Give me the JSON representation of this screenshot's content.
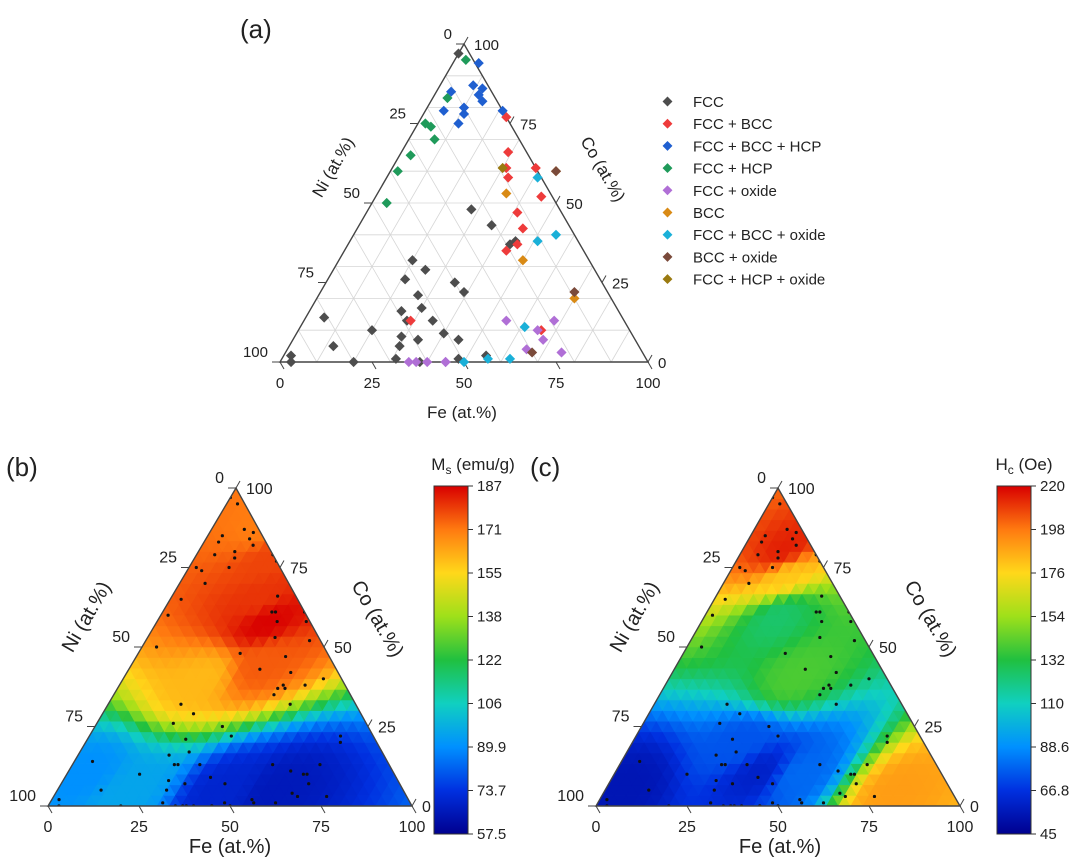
{
  "panels": {
    "a": {
      "label": "(a)"
    },
    "b": {
      "label": "(b)"
    },
    "c": {
      "label": "(c)"
    }
  },
  "colors": {
    "FCC": "#4d4d4d",
    "FCC + BCC": "#ee3b3b",
    "FCC + BCC + HCP": "#1f5fd0",
    "FCC + HCP": "#1f9a5a",
    "FCC + oxide": "#b06fd6",
    "BCC": "#d98a15",
    "FCC + BCC + oxide": "#1ab0d8",
    "BCC + oxide": "#7a4a3a",
    "FCC + HCP + oxide": "#9a7a10"
  },
  "chart_data": [
    {
      "type": "scatter",
      "subtype": "ternary",
      "panel": "(a)",
      "axes": {
        "bottom": "Fe (at.%)",
        "left": "Ni (at.%)",
        "right": "Co (at.%)",
        "ticks_bottom": [
          "0",
          "25",
          "50",
          "75",
          "100"
        ],
        "ticks_left": [
          "0",
          "25",
          "50",
          "75",
          "100"
        ],
        "ticks_right": [
          "0",
          "25",
          "50",
          "75",
          "100"
        ]
      },
      "grid": true,
      "legend_position": "right",
      "series": [
        {
          "name": "FCC",
          "points": [
            {
              "fe": 0,
              "co": 97
            },
            {
              "fe": 5,
              "co": 14
            },
            {
              "fe": 2,
              "co": 2
            },
            {
              "fe": 3,
              "co": 0
            },
            {
              "fe": 12,
              "co": 5
            },
            {
              "fe": 20,
              "co": 10
            },
            {
              "fe": 25,
              "co": 16
            },
            {
              "fe": 30,
              "co": 17
            },
            {
              "fe": 28,
              "co": 13
            },
            {
              "fe": 35,
              "co": 13
            },
            {
              "fe": 40,
              "co": 9
            },
            {
              "fe": 45,
              "co": 7
            },
            {
              "fe": 30,
              "co": 5
            },
            {
              "fe": 31,
              "co": 1
            },
            {
              "fe": 38,
              "co": 0
            },
            {
              "fe": 48,
              "co": 1
            },
            {
              "fe": 55,
              "co": 2
            },
            {
              "fe": 39,
              "co": 22
            },
            {
              "fe": 35,
              "co": 25
            },
            {
              "fe": 25,
              "co": 29
            },
            {
              "fe": 20,
              "co": 32
            },
            {
              "fe": 29,
              "co": 8
            },
            {
              "fe": 34,
              "co": 7
            },
            {
              "fe": 20,
              "co": 0
            },
            {
              "fe": 21,
              "co": 26
            },
            {
              "fe": 27,
              "co": 21
            },
            {
              "fe": 44,
              "co": 37
            },
            {
              "fe": 45,
              "co": 38
            },
            {
              "fe": 36,
              "co": 43
            },
            {
              "fe": 28,
              "co": 48
            }
          ]
        },
        {
          "name": "FCC + BCC",
          "points": [
            {
              "fe": 23,
              "co": 77
            },
            {
              "fe": 29,
              "co": 66
            },
            {
              "fe": 31,
              "co": 61
            },
            {
              "fe": 33,
              "co": 58
            },
            {
              "fe": 39,
              "co": 61
            },
            {
              "fe": 45,
              "co": 52
            },
            {
              "fe": 41,
              "co": 47
            },
            {
              "fe": 45,
              "co": 42
            },
            {
              "fe": 44,
              "co": 35
            },
            {
              "fe": 29,
              "co": 13
            },
            {
              "fe": 66,
              "co": 10
            },
            {
              "fe": 46,
              "co": 37
            }
          ]
        },
        {
          "name": "FCC + BCC + HCP",
          "points": [
            {
              "fe": 9,
              "co": 87
            },
            {
              "fe": 12,
              "co": 86
            },
            {
              "fe": 12,
              "co": 84
            },
            {
              "fe": 14,
              "co": 82
            },
            {
              "fe": 10,
              "co": 80
            },
            {
              "fe": 11,
              "co": 78
            },
            {
              "fe": 4,
              "co": 85
            },
            {
              "fe": 5,
              "co": 79
            },
            {
              "fe": 11,
              "co": 75
            },
            {
              "fe": 21,
              "co": 79
            },
            {
              "fe": 7,
              "co": 94
            }
          ]
        },
        {
          "name": "FCC + HCP",
          "points": [
            {
              "fe": 3,
              "co": 95
            },
            {
              "fe": 4,
              "co": 83
            },
            {
              "fe": 2,
              "co": 75
            },
            {
              "fe": 4,
              "co": 74
            },
            {
              "fe": 7,
              "co": 70
            },
            {
              "fe": 3,
              "co": 65
            },
            {
              "fe": 2,
              "co": 60
            },
            {
              "fe": 4,
              "co": 50
            }
          ]
        },
        {
          "name": "FCC + oxide",
          "points": [
            {
              "fe": 35,
              "co": 0
            },
            {
              "fe": 37,
              "co": 0
            },
            {
              "fe": 40,
              "co": 0
            },
            {
              "fe": 45,
              "co": 0
            },
            {
              "fe": 55,
              "co": 13
            },
            {
              "fe": 65,
              "co": 10
            },
            {
              "fe": 68,
              "co": 13
            },
            {
              "fe": 68,
              "co": 7
            },
            {
              "fe": 65,
              "co": 4
            },
            {
              "fe": 75,
              "co": 3
            },
            {
              "fe": 45,
              "co": 0
            }
          ]
        },
        {
          "name": "BCC",
          "points": [
            {
              "fe": 35,
              "co": 53
            },
            {
              "fe": 50,
              "co": 32
            },
            {
              "fe": 45,
              "co": 60
            },
            {
              "fe": 70,
              "co": 20
            }
          ]
        },
        {
          "name": "FCC + BCC + oxide",
          "points": [
            {
              "fe": 51,
              "co": 38
            },
            {
              "fe": 55,
              "co": 40
            },
            {
              "fe": 41,
              "co": 58
            },
            {
              "fe": 50,
              "co": 0
            },
            {
              "fe": 56,
              "co": 1
            },
            {
              "fe": 62,
              "co": 1
            },
            {
              "fe": 61,
              "co": 11
            }
          ]
        },
        {
          "name": "BCC + oxide",
          "points": [
            {
              "fe": 45,
              "co": 60
            },
            {
              "fe": 69,
              "co": 22
            },
            {
              "fe": 67,
              "co": 3
            }
          ]
        },
        {
          "name": "FCC + HCP + oxide",
          "points": [
            {
              "fe": 30,
              "co": 61
            }
          ]
        }
      ]
    },
    {
      "type": "heatmap",
      "subtype": "ternary-contour",
      "panel": "(b)",
      "colorbar_title": "M",
      "colorbar_sub": "s",
      "colorbar_unit": " (emu/g)",
      "colorbar_ticks": [
        "187",
        "171",
        "155",
        "138",
        "122",
        "106",
        "89.9",
        "73.7",
        "57.5"
      ],
      "range": [
        57.5,
        187
      ],
      "axes": {
        "bottom": "Fe (at.%)",
        "left": "Ni (at.%)",
        "right": "Co (at.%)",
        "ticks_bottom": [
          "0",
          "25",
          "50",
          "75",
          "100"
        ],
        "ticks_left": [
          "0",
          "25",
          "50",
          "75",
          "100"
        ],
        "ticks_right": [
          "0",
          "25",
          "50",
          "75",
          "100"
        ]
      },
      "hotspots": [
        {
          "fe": 30,
          "co": 58,
          "value": 187
        },
        {
          "fe": 25,
          "co": 65,
          "value": 180
        },
        {
          "fe": 20,
          "co": 78,
          "value": 178
        },
        {
          "fe": 15,
          "co": 88,
          "value": 170
        },
        {
          "fe": 22,
          "co": 40,
          "value": 160
        },
        {
          "fe": 35,
          "co": 45,
          "value": 175
        },
        {
          "fe": 45,
          "co": 5,
          "value": 70
        },
        {
          "fe": 60,
          "co": 5,
          "value": 66
        },
        {
          "fe": 20,
          "co": 5,
          "value": 95
        },
        {
          "fe": 5,
          "co": 10,
          "value": 90
        }
      ]
    },
    {
      "type": "heatmap",
      "subtype": "ternary-contour",
      "panel": "(c)",
      "colorbar_title": "H",
      "colorbar_sub": "c",
      "colorbar_unit": " (Oe)",
      "colorbar_ticks": [
        "220",
        "198",
        "176",
        "154",
        "132",
        "110",
        "88.6",
        "66.8",
        "45"
      ],
      "range": [
        45,
        220
      ],
      "axes": {
        "bottom": "Fe (at.%)",
        "left": "Ni (at.%)",
        "right": "Co (at.%)",
        "ticks_bottom": [
          "0",
          "25",
          "50",
          "75",
          "100"
        ],
        "ticks_left": [
          "0",
          "25",
          "50",
          "75",
          "100"
        ],
        "ticks_right": [
          "0",
          "25",
          "50",
          "75",
          "100"
        ]
      },
      "hotspots": [
        {
          "fe": 12,
          "co": 80,
          "value": 215
        },
        {
          "fe": 16,
          "co": 72,
          "value": 180
        },
        {
          "fe": 80,
          "co": 5,
          "value": 190
        },
        {
          "fe": 35,
          "co": 40,
          "value": 140
        },
        {
          "fe": 20,
          "co": 60,
          "value": 125
        },
        {
          "fe": 5,
          "co": 5,
          "value": 55
        },
        {
          "fe": 40,
          "co": 10,
          "value": 60
        },
        {
          "fe": 30,
          "co": 20,
          "value": 75
        },
        {
          "fe": 50,
          "co": 10,
          "value": 80
        }
      ]
    }
  ]
}
